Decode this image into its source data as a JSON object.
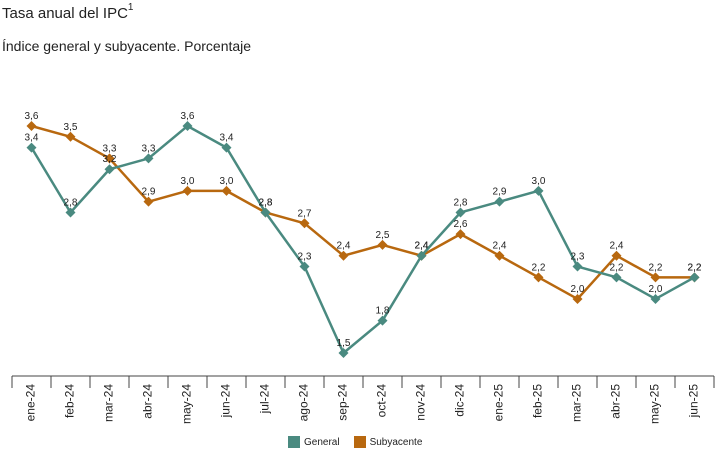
{
  "header": {
    "title": "Tasa anual del IPC",
    "title_sup": "1",
    "subtitle": "Índice general y subyacente. Porcentaje"
  },
  "chart_data": {
    "type": "line",
    "categories": [
      "ene-24",
      "feb-24",
      "mar-24",
      "abr-24",
      "may-24",
      "jun-24",
      "jul-24",
      "ago-24",
      "sep-24",
      "oct-24",
      "nov-24",
      "dic-24",
      "ene-25",
      "feb-25",
      "mar-25",
      "abr-25",
      "may-25",
      "jun-25"
    ],
    "series": [
      {
        "name": "General",
        "color": "#4a8a80",
        "values": [
          3.4,
          2.8,
          3.2,
          3.3,
          3.6,
          3.4,
          2.8,
          2.3,
          1.5,
          1.8,
          2.4,
          2.8,
          2.9,
          3.0,
          2.3,
          2.2,
          2.0,
          2.2
        ],
        "labels": [
          "3,4",
          "2,8",
          "3,2",
          "3,3",
          "3,6",
          "3,4",
          "2,8",
          "2,3",
          "1,5",
          "1,8",
          "2,4",
          "2,8",
          "2,9",
          "3,0",
          "2,3",
          "2,2",
          "2,0",
          "2,2"
        ]
      },
      {
        "name": "Subyacente",
        "color": "#b8680f",
        "values": [
          3.6,
          3.5,
          3.3,
          2.9,
          3.0,
          3.0,
          2.8,
          2.7,
          2.4,
          2.5,
          2.4,
          2.6,
          2.4,
          2.2,
          2.0,
          2.4,
          2.2,
          2.2
        ],
        "labels": [
          "3,6",
          "3,5",
          "3,3",
          "2,9",
          "3,0",
          "3,0",
          "2,8",
          "2,7",
          "2,4",
          "2,5",
          "2,4",
          "2,6",
          "2,4",
          "2,2",
          "2,0",
          "2,4",
          "2,2",
          "2,2"
        ]
      }
    ],
    "grid": false,
    "legend": "bottom-center"
  }
}
